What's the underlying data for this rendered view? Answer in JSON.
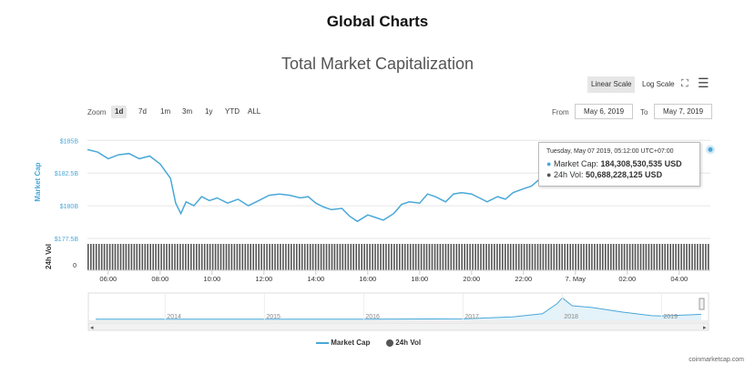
{
  "page_title": "Global Charts",
  "controls": {
    "linear_scale": "Linear Scale",
    "log_scale": "Log Scale",
    "zoom_label": "Zoom",
    "zoom_options": [
      "1d",
      "7d",
      "1m",
      "3m",
      "1y",
      "YTD",
      "ALL"
    ],
    "active_zoom": "1d",
    "from_label": "From",
    "from_value": "May 6, 2019",
    "to_label": "To",
    "to_value": "May 7, 2019"
  },
  "tooltip": {
    "timestamp": "Tuesday, May 07 2019, 05:12:00 UTC+07:00",
    "market_cap_label": "Market Cap:",
    "market_cap_value": "184,308,530,535 USD",
    "vol_label": "24h Vol:",
    "vol_value": "50,688,228,125 USD"
  },
  "credit": "coinmarketcap.com",
  "colors": {
    "line": "#4aa8d8",
    "volume": "#555555",
    "accent": "#4aa8d8"
  },
  "chart_data": {
    "type": "line",
    "title": "Total Market Capitalization",
    "ylabel": "Market Cap",
    "y2label": "24h Vol",
    "yticks": [
      "$185B",
      "$182.5B",
      "$180B",
      "$177.5B"
    ],
    "ytick_values": [
      185,
      182.5,
      180,
      177.5
    ],
    "vol_tick": "0",
    "xticks": [
      "06:00",
      "08:00",
      "10:00",
      "12:00",
      "14:00",
      "16:00",
      "18:00",
      "20:00",
      "22:00",
      "7. May",
      "02:00",
      "04:00"
    ],
    "xtick_hours": [
      6,
      8,
      10,
      12,
      14,
      16,
      18,
      20,
      22,
      24,
      26,
      28
    ],
    "x_range_hours": [
      5.2,
      29.2
    ],
    "ylim": [
      177.5,
      185.3
    ],
    "series": [
      {
        "name": "Market Cap",
        "unit": "$B",
        "x_hours": [
          5.2,
          5.6,
          6.0,
          6.4,
          6.8,
          7.2,
          7.6,
          8.0,
          8.4,
          8.6,
          8.8,
          9.0,
          9.3,
          9.6,
          9.9,
          10.2,
          10.6,
          11.0,
          11.4,
          11.8,
          12.2,
          12.6,
          13.0,
          13.4,
          13.7,
          14.0,
          14.3,
          14.6,
          15.0,
          15.3,
          15.6,
          16.0,
          16.3,
          16.6,
          17.0,
          17.3,
          17.6,
          18.0,
          18.3,
          18.6,
          19.0,
          19.3,
          19.6,
          20.0,
          20.3,
          20.6,
          21.0,
          21.3,
          21.6,
          22.0,
          22.3,
          22.6,
          23.0
        ],
        "values": [
          184.3,
          184.1,
          183.6,
          183.9,
          184.0,
          183.6,
          183.8,
          183.2,
          182.1,
          180.2,
          179.4,
          180.3,
          180.0,
          180.7,
          180.4,
          180.6,
          180.2,
          180.5,
          180.0,
          180.4,
          180.8,
          180.9,
          180.8,
          180.6,
          180.7,
          180.2,
          179.9,
          179.7,
          179.8,
          179.2,
          178.8,
          179.3,
          179.1,
          178.9,
          179.4,
          180.1,
          180.3,
          180.2,
          180.9,
          180.7,
          180.3,
          180.9,
          181.0,
          180.9,
          180.6,
          180.3,
          180.7,
          180.5,
          181.0,
          181.3,
          181.5,
          182.0,
          182.0
        ],
        "extra_x_hours": [
          23.4,
          23.8,
          24.2
        ],
        "extra_values": [
          182.7,
          182.4,
          182.6
        ],
        "current_x_hours": 29.2,
        "current_value": 184.3
      },
      {
        "name": "24h Vol",
        "values": "50,688,228,125"
      }
    ],
    "navigator": {
      "labels": [
        "2014",
        "2015",
        "2016",
        "2017",
        "2018",
        "2019"
      ],
      "label_years": [
        2014,
        2015,
        2016,
        2017,
        2018,
        2019
      ],
      "x_range_years": [
        2013.3,
        2019.4
      ],
      "years": [
        2013.3,
        2014.0,
        2015.0,
        2016.0,
        2017.0,
        2017.5,
        2017.8,
        2017.95,
        2018.0,
        2018.1,
        2018.3,
        2018.6,
        2018.9,
        2019.0,
        2019.4
      ],
      "values": [
        10,
        11,
        6,
        8,
        18,
        90,
        200,
        560,
        760,
        480,
        420,
        260,
        130,
        120,
        180
      ]
    },
    "legend": [
      "Market Cap",
      "24h Vol"
    ],
    "legend_position": "bottom-center",
    "grid": true
  }
}
